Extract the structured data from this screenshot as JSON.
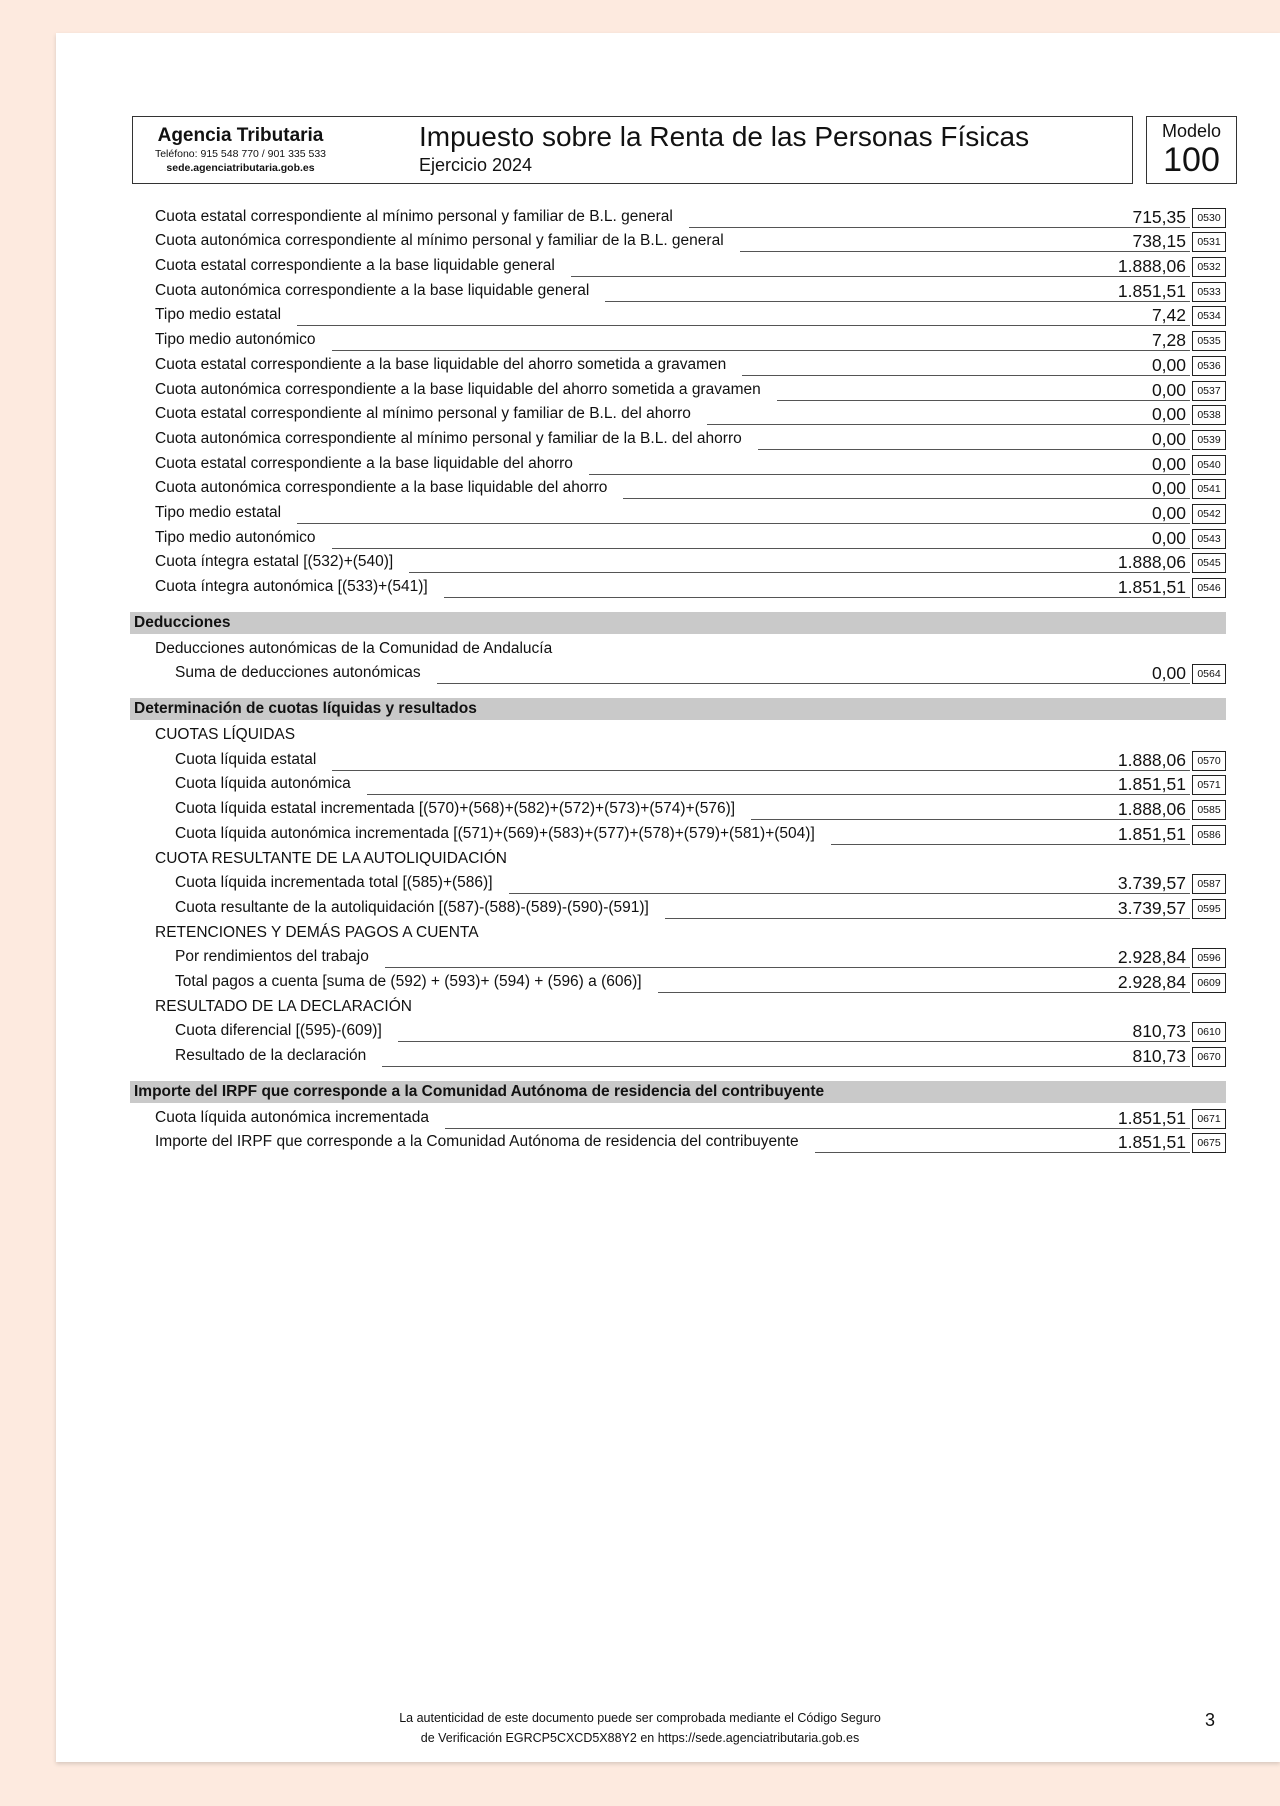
{
  "header": {
    "agency_name": "Agencia Tributaria",
    "agency_phone": "Teléfono: 915 548 770 / 901 335 533",
    "agency_site": "sede.agenciatributaria.gob.es",
    "title": "Impuesto sobre la Renta de las Personas Físicas",
    "exercise": "Ejercicio 2024",
    "modelo_label": "Modelo",
    "modelo_number": "100"
  },
  "blocks": [
    {
      "type": "row",
      "level": 0,
      "label": "Cuota estatal correspondiente al mínimo personal y familiar de B.L. general",
      "value": "715,35",
      "code": "0530"
    },
    {
      "type": "row",
      "level": 0,
      "label": "Cuota autonómica correspondiente al mínimo personal y familiar de la B.L. general",
      "value": "738,15",
      "code": "0531"
    },
    {
      "type": "row",
      "level": 0,
      "label": "Cuota estatal correspondiente a la base liquidable general",
      "value": "1.888,06",
      "code": "0532"
    },
    {
      "type": "row",
      "level": 0,
      "label": "Cuota autonómica correspondiente a la base liquidable general",
      "value": "1.851,51",
      "code": "0533"
    },
    {
      "type": "row",
      "level": 0,
      "label": "Tipo medio estatal",
      "value": "7,42",
      "code": "0534"
    },
    {
      "type": "row",
      "level": 0,
      "label": "Tipo medio autonómico",
      "value": "7,28",
      "code": "0535"
    },
    {
      "type": "row",
      "level": 0,
      "label": "Cuota estatal correspondiente a la base liquidable del ahorro sometida a gravamen",
      "value": "0,00",
      "code": "0536"
    },
    {
      "type": "row",
      "level": 0,
      "label": "Cuota autonómica correspondiente a la base liquidable del ahorro sometida a gravamen",
      "value": "0,00",
      "code": "0537"
    },
    {
      "type": "row",
      "level": 0,
      "label": "Cuota estatal correspondiente al mínimo personal y familiar de B.L. del ahorro",
      "value": "0,00",
      "code": "0538"
    },
    {
      "type": "row",
      "level": 0,
      "label": "Cuota autonómica correspondiente al mínimo personal y familiar de la B.L. del ahorro",
      "value": "0,00",
      "code": "0539"
    },
    {
      "type": "row",
      "level": 0,
      "label": "Cuota estatal correspondiente a la base liquidable del ahorro",
      "value": "0,00",
      "code": "0540"
    },
    {
      "type": "row",
      "level": 0,
      "label": "Cuota autonómica correspondiente a la base liquidable del ahorro",
      "value": "0,00",
      "code": "0541"
    },
    {
      "type": "row",
      "level": 0,
      "label": "Tipo medio estatal",
      "value": "0,00",
      "code": "0542"
    },
    {
      "type": "row",
      "level": 0,
      "label": "Tipo medio autonómico",
      "value": "0,00",
      "code": "0543"
    },
    {
      "type": "row",
      "level": 0,
      "label": "Cuota íntegra estatal [(532)+(540)]",
      "value": "1.888,06",
      "code": "0545"
    },
    {
      "type": "row",
      "level": 0,
      "label": "Cuota íntegra autonómica [(533)+(541)]",
      "value": "1.851,51",
      "code": "0546"
    },
    {
      "type": "section",
      "label": "Deducciones"
    },
    {
      "type": "sub",
      "level": 0,
      "label": "Deducciones autonómicas de la Comunidad de Andalucía"
    },
    {
      "type": "row",
      "level": 1,
      "label": "Suma de deducciones autonómicas",
      "value": "0,00",
      "code": "0564"
    },
    {
      "type": "section",
      "label": "Determinación de cuotas líquidas y resultados"
    },
    {
      "type": "sub",
      "level": 0,
      "label": "CUOTAS LÍQUIDAS"
    },
    {
      "type": "row",
      "level": 1,
      "label": "Cuota líquida estatal",
      "value": "1.888,06",
      "code": "0570"
    },
    {
      "type": "row",
      "level": 1,
      "label": "Cuota líquida autonómica",
      "value": "1.851,51",
      "code": "0571"
    },
    {
      "type": "row",
      "level": 1,
      "label": "Cuota líquida estatal incrementada [(570)+(568)+(582)+(572)+(573)+(574)+(576)]",
      "value": "1.888,06",
      "code": "0585"
    },
    {
      "type": "row",
      "level": 1,
      "label": "Cuota líquida autonómica incrementada [(571)+(569)+(583)+(577)+(578)+(579)+(581)+(504)]",
      "value": "1.851,51",
      "code": "0586"
    },
    {
      "type": "sub",
      "level": 0,
      "label": "CUOTA RESULTANTE DE LA AUTOLIQUIDACIÓN"
    },
    {
      "type": "row",
      "level": 1,
      "label": "Cuota líquida incrementada total [(585)+(586)]",
      "value": "3.739,57",
      "code": "0587"
    },
    {
      "type": "row",
      "level": 1,
      "label": "Cuota resultante de la autoliquidación [(587)-(588)-(589)-(590)-(591)]",
      "value": "3.739,57",
      "code": "0595"
    },
    {
      "type": "sub",
      "level": 0,
      "label": "RETENCIONES Y DEMÁS PAGOS A CUENTA"
    },
    {
      "type": "row",
      "level": 1,
      "label": "Por rendimientos del trabajo",
      "value": "2.928,84",
      "code": "0596"
    },
    {
      "type": "row",
      "level": 1,
      "label": "Total pagos a cuenta [suma de (592) + (593)+ (594) + (596) a (606)]",
      "value": "2.928,84",
      "code": "0609"
    },
    {
      "type": "sub",
      "level": 0,
      "label": "RESULTADO DE LA DECLARACIÓN"
    },
    {
      "type": "row",
      "level": 1,
      "label": "Cuota diferencial [(595)-(609)]",
      "value": "810,73",
      "code": "0610"
    },
    {
      "type": "row",
      "level": 1,
      "label": "Resultado de la declaración",
      "value": "810,73",
      "code": "0670"
    },
    {
      "type": "section",
      "label": "Importe del IRPF que corresponde a la Comunidad Autónoma de residencia del contribuyente"
    },
    {
      "type": "row",
      "level": 0,
      "label": "Cuota líquida autonómica incrementada",
      "value": "1.851,51",
      "code": "0671"
    },
    {
      "type": "row",
      "level": 0,
      "label": "Importe del IRPF que corresponde a la Comunidad Autónoma de residencia del contribuyente",
      "value": "1.851,51",
      "code": "0675"
    }
  ],
  "footer": {
    "line1": "La autenticidad de este documento puede ser comprobada mediante el Código Seguro",
    "line2": "de Verificación EGRCP5CXCD5X88Y2 en https://sede.agenciatributaria.gob.es",
    "page_number": "3"
  }
}
